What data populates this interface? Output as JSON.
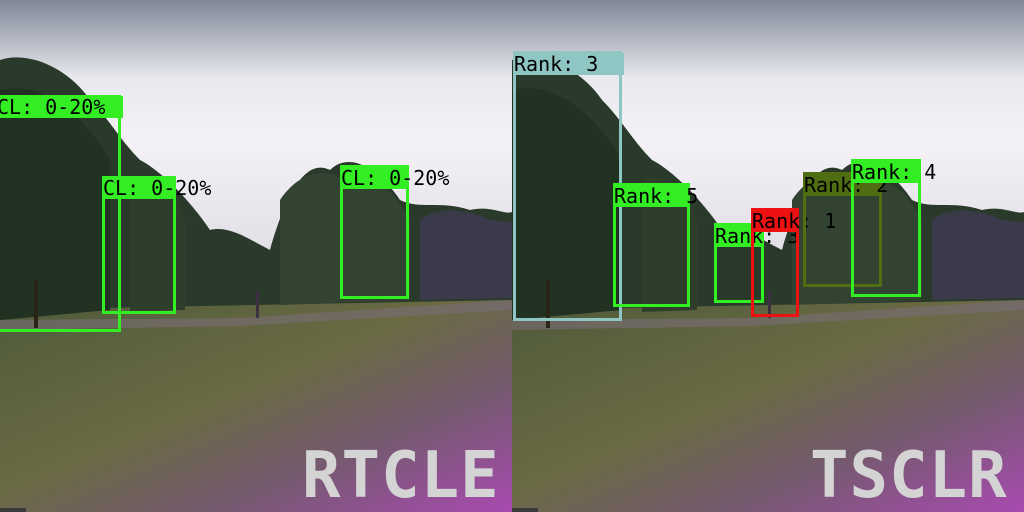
{
  "left_panel": {
    "title": "RTCLE",
    "detections": [
      {
        "label": "CL: 0-20%",
        "color": "#33ee22"
      },
      {
        "label": "CL: 0-20%",
        "color": "#33ee22"
      },
      {
        "label": "CL: 0-20%",
        "color": "#33ee22"
      }
    ]
  },
  "right_panel": {
    "title": "TSCLR",
    "detections": [
      {
        "label": "Rank: 3",
        "color": "#8fc6c4"
      },
      {
        "label": "Rank: 5",
        "color": "#33ee22"
      },
      {
        "label": "Rank: 3",
        "color": "#33ee22"
      },
      {
        "label": "Rank: 1",
        "color": "#ee1111"
      },
      {
        "label": "Rank: 2",
        "color": "#4f6e12"
      },
      {
        "label": "Rank: 4",
        "color": "#33ee22"
      }
    ]
  }
}
